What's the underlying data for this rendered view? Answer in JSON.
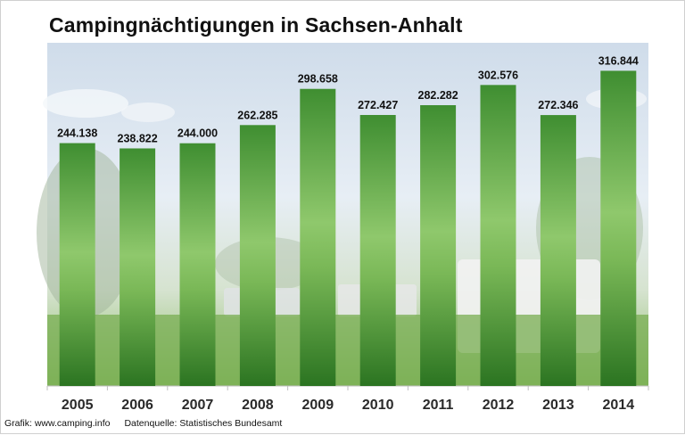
{
  "chart_data": {
    "type": "bar",
    "title": "Campingnächtigungen in Sachsen-Anhalt",
    "categories": [
      "2005",
      "2006",
      "2007",
      "2008",
      "2009",
      "2010",
      "2011",
      "2012",
      "2013",
      "2014"
    ],
    "values": [
      244138,
      238822,
      244000,
      262285,
      298658,
      272427,
      282282,
      302576,
      272346,
      316844
    ],
    "value_labels": [
      "244.138",
      "238.822",
      "244.000",
      "262.285",
      "298.658",
      "272.427",
      "282.282",
      "302.576",
      "272.346",
      "316.844"
    ],
    "xlabel": "",
    "ylabel": "",
    "ylim": [
      0,
      345000
    ],
    "grid": false,
    "legend": "none",
    "colors": {
      "bar_dark": "#2e7a24",
      "bar_light": "#8cc56a",
      "background_sky": "#dfe9f3",
      "background_grass": "#7fb45c"
    }
  },
  "footer": {
    "credit": "Grafik: www.camping.info",
    "source": "Datenquelle:  Statistisches Bundesamt"
  }
}
